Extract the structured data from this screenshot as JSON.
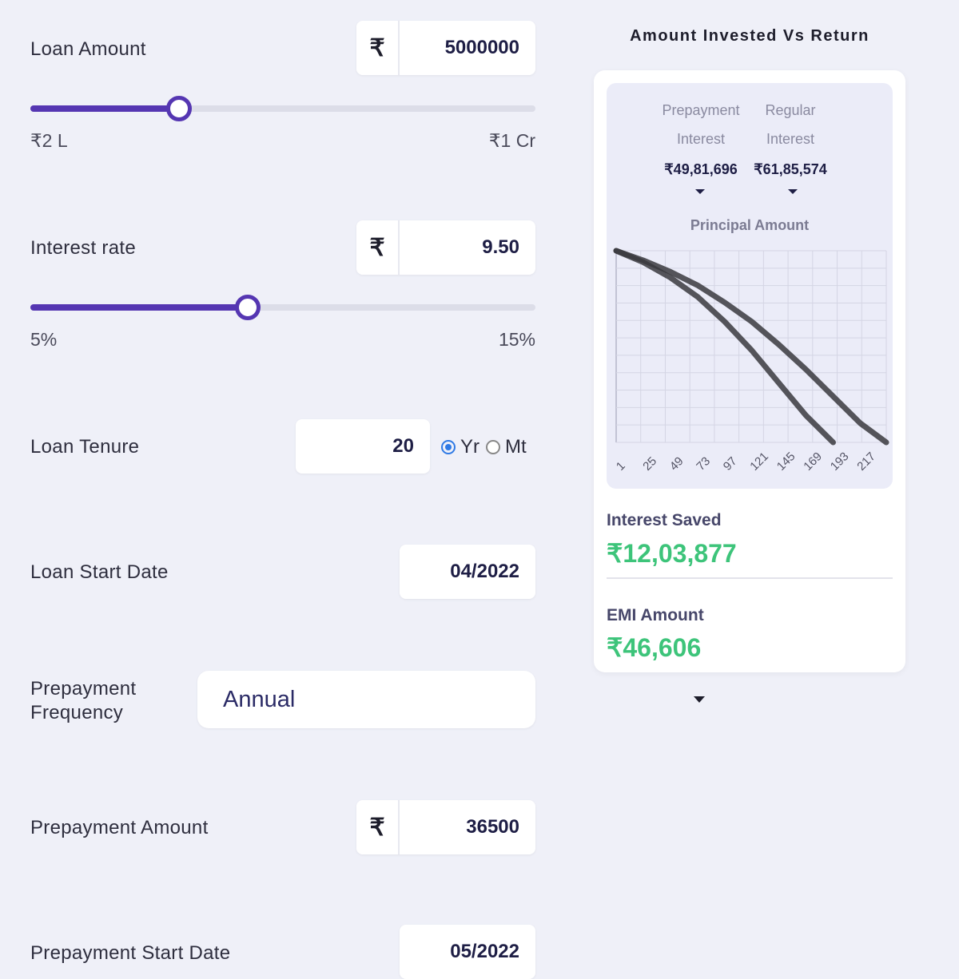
{
  "loan_amount": {
    "label": "Loan Amount",
    "currency": "₹",
    "value": "5000000",
    "min_label": "₹2 L",
    "max_label": "₹1 Cr",
    "slider_fraction": 0.295
  },
  "interest_rate": {
    "label": "Interest rate",
    "currency": "₹",
    "value": "9.50",
    "min_label": "5%",
    "max_label": "15%",
    "slider_fraction": 0.43
  },
  "loan_tenure": {
    "label": "Loan Tenure",
    "value": "20",
    "unit_year": "Yr",
    "unit_month": "Mt",
    "selected_unit": "Yr"
  },
  "loan_start_date": {
    "label": "Loan Start Date",
    "value": "04/2022"
  },
  "prepayment_frequency": {
    "label_line1": "Prepayment",
    "label_line2": "Frequency",
    "selected": "Annual"
  },
  "prepayment_amount": {
    "label": "Prepayment Amount",
    "currency": "₹",
    "value": "36500"
  },
  "prepayment_start_date": {
    "label": "Prepayment Start Date",
    "value": "05/2022"
  },
  "results": {
    "title": "Amount Invested Vs Return",
    "prepay_label_1": "Prepayment",
    "prepay_label_2": "Interest",
    "prepay_value": "₹49,81,696",
    "regular_label_1": "Regular",
    "regular_label_2": "Interest",
    "regular_value": "₹61,85,574",
    "chart_title": "Principal Amount",
    "interest_saved_label": "Interest Saved",
    "interest_saved_value": "₹12,03,877",
    "emi_label": "EMI Amount",
    "emi_value": "₹46,606"
  },
  "colors": {
    "accent": "#5536b2",
    "green": "#3dc47a",
    "background": "#eff0f8"
  },
  "chart_data": {
    "type": "line",
    "title": "Principal Amount",
    "x_ticks": [
      "1",
      "25",
      "49",
      "73",
      "97",
      "121",
      "145",
      "169",
      "193",
      "217"
    ],
    "grid": true,
    "series": [
      {
        "x": [
          1,
          25,
          49,
          73,
          97,
          121,
          145,
          169,
          193
        ],
        "y": [
          1.0,
          0.94,
          0.86,
          0.76,
          0.63,
          0.48,
          0.31,
          0.14,
          0.0
        ]
      },
      {
        "x": [
          1,
          25,
          49,
          73,
          97,
          121,
          145,
          169,
          193,
          217,
          240
        ],
        "y": [
          1.0,
          0.95,
          0.89,
          0.82,
          0.73,
          0.63,
          0.51,
          0.38,
          0.24,
          0.1,
          0.0
        ]
      }
    ]
  }
}
